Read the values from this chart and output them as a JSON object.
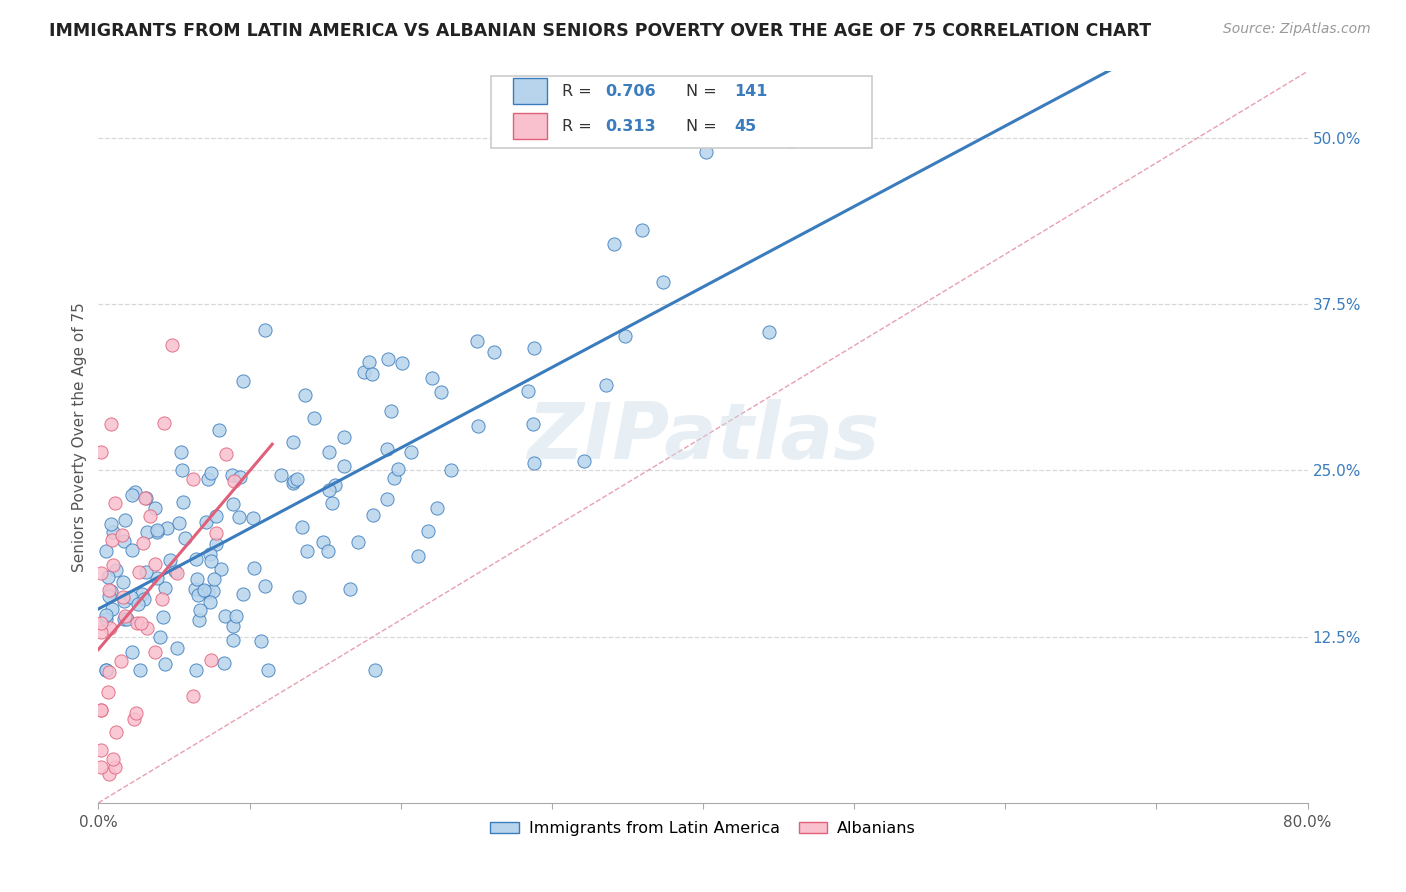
{
  "title": "IMMIGRANTS FROM LATIN AMERICA VS ALBANIAN SENIORS POVERTY OVER THE AGE OF 75 CORRELATION CHART",
  "source": "Source: ZipAtlas.com",
  "ylabel": "Seniors Poverty Over the Age of 75",
  "xlim": [
    0.0,
    0.8
  ],
  "ylim": [
    0.0,
    0.55
  ],
  "ytick_positions": [
    0.125,
    0.25,
    0.375,
    0.5
  ],
  "ytick_labels": [
    "12.5%",
    "25.0%",
    "37.5%",
    "50.0%"
  ],
  "blue_R": 0.706,
  "blue_N": 141,
  "pink_R": 0.313,
  "pink_N": 45,
  "blue_color": "#b8d4ec",
  "blue_line_color": "#3a7cbd",
  "pink_color": "#f9c0ce",
  "pink_line_color": "#e0607a",
  "diagonal_color": "#e0b8c0",
  "background_color": "#ffffff",
  "grid_color": "#d8d8d8",
  "watermark": "ZIPatlas",
  "legend_blue_label": "Immigrants from Latin America",
  "legend_pink_label": "Albanians",
  "title_fontsize": 12.5,
  "source_fontsize": 10,
  "axis_label_fontsize": 11,
  "tick_fontsize": 11
}
